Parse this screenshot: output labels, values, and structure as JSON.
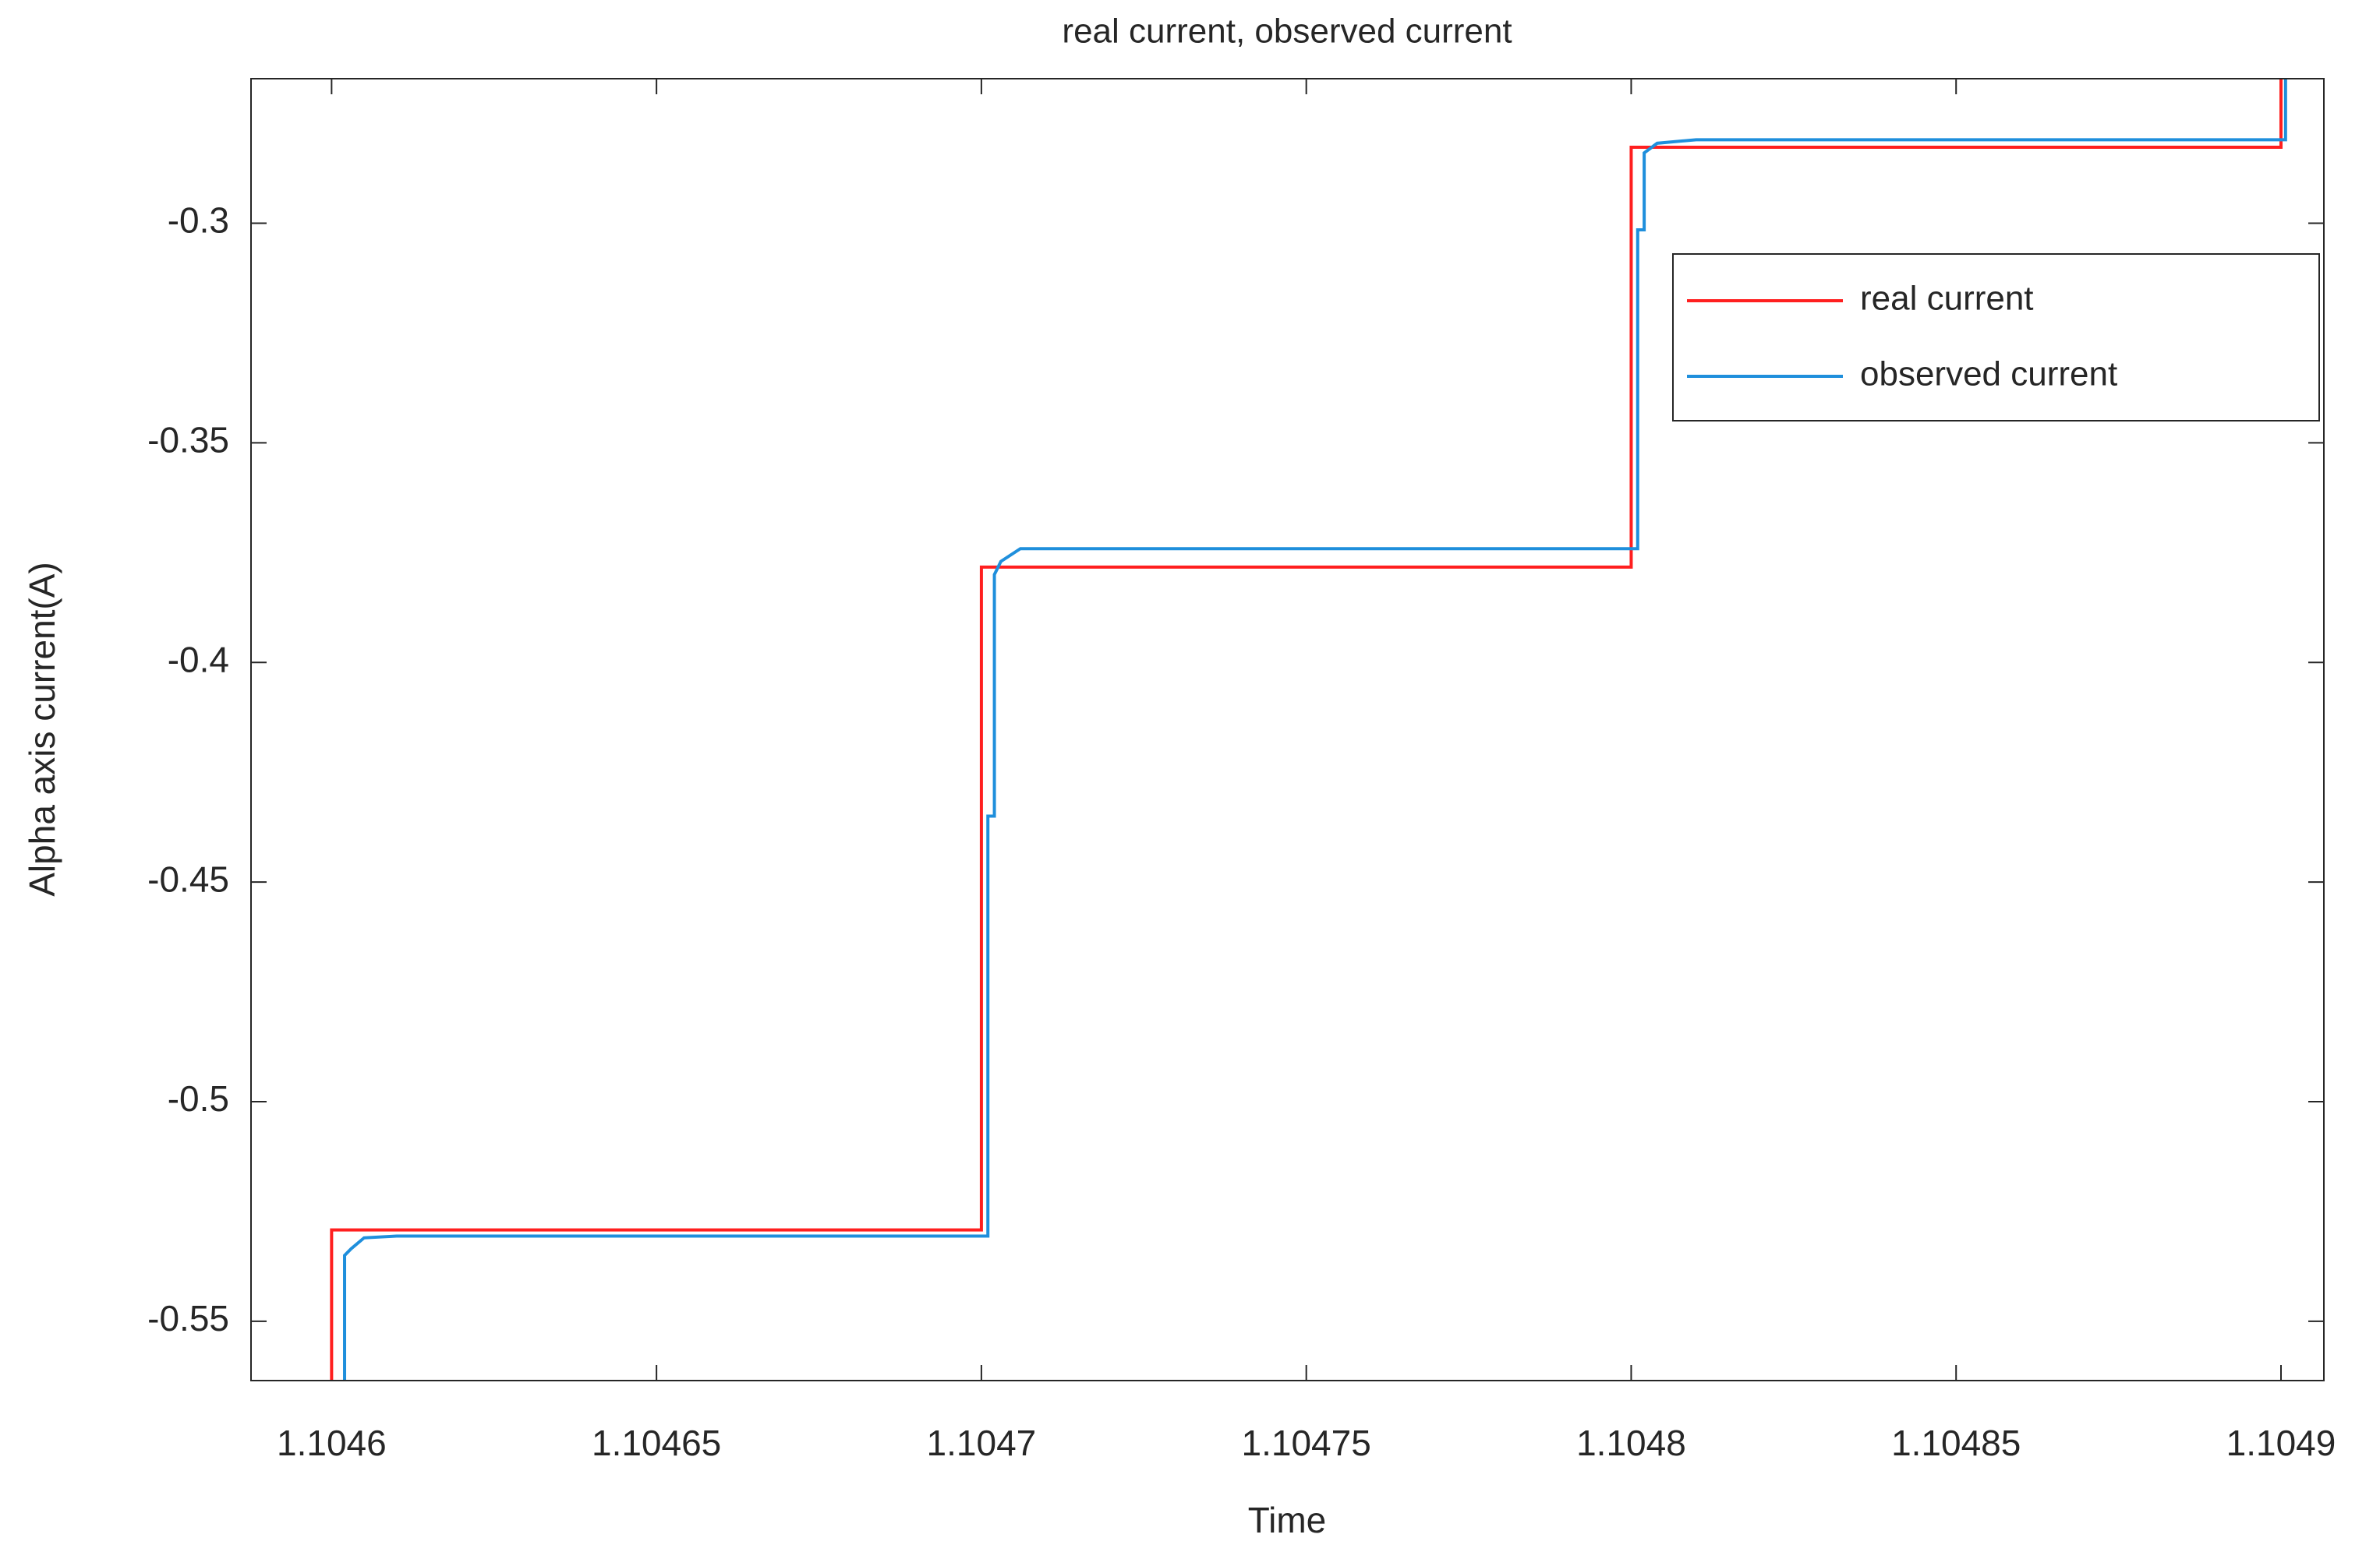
{
  "chart_data": {
    "type": "line",
    "title": "real current, observed current",
    "xlabel": "Time",
    "ylabel": "Alpha axis current(A)",
    "xlim": [
      1.1045876,
      1.1049066
    ],
    "ylim": [
      -0.5635,
      -0.2671
    ],
    "xticks": [
      1.1046,
      1.10465,
      1.1047,
      1.10475,
      1.1048,
      1.10485,
      1.1049
    ],
    "yticks": [
      -0.55,
      -0.5,
      -0.45,
      -0.4,
      -0.35,
      -0.3
    ],
    "legend": "northeast",
    "series": [
      {
        "name": "real current",
        "color": "#ff1f1f",
        "x": [
          1.1046,
          1.1046,
          1.1047,
          1.1047,
          1.1048,
          1.1048,
          1.1049,
          1.1049
        ],
        "values": [
          -0.57,
          -0.5292,
          -0.5292,
          -0.3783,
          -0.3783,
          -0.2827,
          -0.2827,
          -0.26
        ]
      },
      {
        "name": "observed current",
        "color": "#1f8fdc",
        "x": [
          1.104602,
          1.104602,
          1.104603,
          1.104605,
          1.10461,
          1.104701,
          1.104701,
          1.104702,
          1.104702,
          1.104703,
          1.104706,
          1.104801,
          1.104801,
          1.104802,
          1.104802,
          1.104804,
          1.10481,
          1.1049007,
          1.1049007
        ],
        "values": [
          -0.57,
          -0.535,
          -0.5335,
          -0.531,
          -0.5306,
          -0.5306,
          -0.435,
          -0.435,
          -0.38,
          -0.377,
          -0.3741,
          -0.3741,
          -0.3015,
          -0.3015,
          -0.284,
          -0.2818,
          -0.281,
          -0.281,
          -0.26
        ]
      }
    ]
  }
}
